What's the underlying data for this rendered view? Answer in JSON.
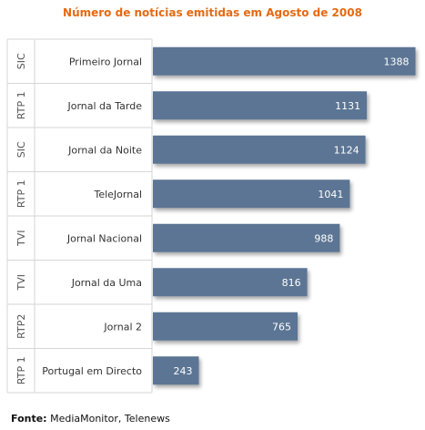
{
  "chart_data": {
    "type": "bar",
    "orientation": "horizontal",
    "title": "Número de notícias emitidas em Agosto de 2008",
    "categories": [
      {
        "group": "SIC",
        "label": "Primeiro Jornal"
      },
      {
        "group": "RTP 1",
        "label": "Jornal da Tarde"
      },
      {
        "group": "SIC",
        "label": "Jornal da Noite"
      },
      {
        "group": "RTP 1",
        "label": "TeleJornal"
      },
      {
        "group": "TVI",
        "label": "Jornal Nacional"
      },
      {
        "group": "TVI",
        "label": "Jornal da Uma"
      },
      {
        "group": "RTP2",
        "label": "Jornal 2"
      },
      {
        "group": "RTP 1",
        "label": "Portugal em Directo"
      }
    ],
    "values": [
      1388,
      1131,
      1124,
      1041,
      988,
      816,
      765,
      243
    ],
    "xlim": [
      0,
      1400
    ],
    "bar_color": "#5b7594",
    "label_color": "#ffffff",
    "grid": false,
    "legend": "none"
  },
  "source": {
    "label": "Fonte:",
    "text": "MediaMonitor, Telenews"
  }
}
